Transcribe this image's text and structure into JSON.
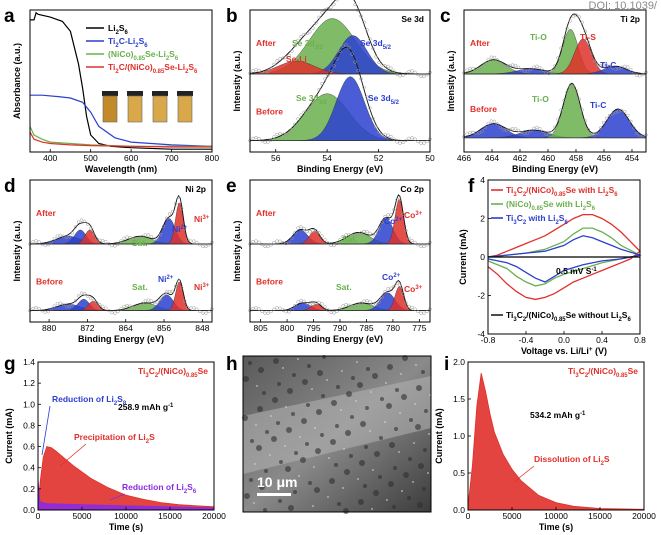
{
  "doi": "DOI: 10.1039/",
  "colors": {
    "red": "#e0302a",
    "green": "#6ab04c",
    "blue": "#2b3fd0",
    "purple": "#8a2be2",
    "black": "#000000",
    "gray": "#9a9a9a"
  },
  "panel_labels": [
    "a",
    "b",
    "c",
    "d",
    "e",
    "f",
    "g",
    "h",
    "i"
  ],
  "chart_data": [
    {
      "panel": "a",
      "type": "line",
      "xlabel": "Wavelength (nm)",
      "ylabel": "Absorbance (a.u.)",
      "xlim": [
        350,
        800
      ],
      "xticks": [
        "400",
        "500",
        "600",
        "700",
        "800"
      ],
      "legend": [
        "Li2S6",
        "Ti2C-Li2S6",
        "(NiCo)0.85Se-Li2S6",
        "Ti2C/(NiCo)0.85Se-Li2S6"
      ],
      "series": [
        {
          "name": "Li2S6",
          "color": "black",
          "x": [
            350,
            360,
            365,
            370,
            400,
            430,
            450,
            470,
            480,
            490,
            500,
            520,
            550,
            600,
            700,
            800
          ],
          "y": [
            0.93,
            0.93,
            0.98,
            0.97,
            0.95,
            0.92,
            0.85,
            0.62,
            0.45,
            0.25,
            0.12,
            0.06,
            0.04,
            0.03,
            0.02,
            0.02
          ]
        },
        {
          "name": "Ti2C-Li2S6",
          "color": "blue",
          "x": [
            350,
            380,
            420,
            450,
            480,
            500,
            520,
            560,
            600,
            700,
            800
          ],
          "y": [
            0.4,
            0.4,
            0.39,
            0.38,
            0.35,
            0.28,
            0.18,
            0.1,
            0.07,
            0.05,
            0.04
          ]
        },
        {
          "name": "(NiCo)0.85Se-Li2S6",
          "color": "green",
          "x": [
            350,
            360,
            380,
            400,
            450,
            500,
            600,
            700,
            800
          ],
          "y": [
            0.18,
            0.12,
            0.09,
            0.07,
            0.06,
            0.05,
            0.04,
            0.04,
            0.04
          ]
        },
        {
          "name": "Ti2C/(NiCo)0.85Se-Li2S6",
          "color": "red",
          "x": [
            350,
            360,
            380,
            400,
            450,
            500,
            600,
            700,
            800
          ],
          "y": [
            0.14,
            0.09,
            0.07,
            0.06,
            0.05,
            0.045,
            0.04,
            0.035,
            0.035
          ]
        }
      ]
    },
    {
      "panel": "b",
      "type": "area",
      "title": "Se 3d",
      "xlabel": "Binding Energy (eV)",
      "ylabel": "Intensity (a.u.)",
      "xlim": [
        57,
        50
      ],
      "xticks": [
        "56",
        "54",
        "52",
        "50"
      ],
      "labels": {
        "after": "After",
        "before": "Before",
        "peak1": "Se 3d3/2",
        "peak2": "Se 3d5/2",
        "peak3": "Se-Li"
      },
      "after": {
        "peaks": [
          {
            "center": 53.8,
            "height": 0.65,
            "width": 0.9,
            "color": "green"
          },
          {
            "center": 53.0,
            "height": 0.45,
            "width": 0.55,
            "color": "blue"
          },
          {
            "center": 55.2,
            "height": 0.15,
            "width": 0.7,
            "color": "red"
          }
        ]
      },
      "before": {
        "peaks": [
          {
            "center": 54.0,
            "height": 0.55,
            "width": 0.85,
            "color": "green"
          },
          {
            "center": 53.1,
            "height": 0.75,
            "width": 0.55,
            "color": "blue"
          }
        ]
      }
    },
    {
      "panel": "c",
      "type": "area",
      "title": "Ti 2p",
      "xlabel": "Binding Energy (eV)",
      "ylabel": "Intensity (a.u.)",
      "xlim": [
        466,
        453
      ],
      "xticks": [
        "466",
        "464",
        "462",
        "460",
        "458",
        "456",
        "454"
      ],
      "labels": {
        "after": "After",
        "before": "Before",
        "tio": "Ti-O",
        "tis": "Ti-S",
        "tic": "Ti-C"
      },
      "after": {
        "peaks": [
          {
            "center": 463.9,
            "height": 0.22,
            "width": 0.9,
            "color": "green"
          },
          {
            "center": 461.2,
            "height": 0.08,
            "width": 1.0,
            "color": "blue"
          },
          {
            "center": 458.4,
            "height": 0.7,
            "width": 0.55,
            "color": "green"
          },
          {
            "center": 457.5,
            "height": 0.55,
            "width": 0.6,
            "color": "red"
          },
          {
            "center": 455.2,
            "height": 0.12,
            "width": 0.8,
            "color": "blue"
          }
        ]
      },
      "before": {
        "peaks": [
          {
            "center": 463.9,
            "height": 0.22,
            "width": 0.9,
            "color": "blue"
          },
          {
            "center": 461.0,
            "height": 0.12,
            "width": 1.0,
            "color": "blue"
          },
          {
            "center": 458.3,
            "height": 0.85,
            "width": 0.6,
            "color": "green"
          },
          {
            "center": 455.0,
            "height": 0.45,
            "width": 0.8,
            "color": "blue"
          }
        ]
      }
    },
    {
      "panel": "d",
      "type": "area",
      "title": "Ni 2p",
      "xlabel": "Binding Energy (eV)",
      "ylabel": "Intensity (a.u.)",
      "xlim": [
        884,
        846
      ],
      "xticks": [
        "880",
        "872",
        "864",
        "856",
        "848"
      ],
      "labels": {
        "after": "After",
        "before": "Before",
        "sat": "Sat.",
        "ni2": "Ni2+",
        "ni3": "Ni3+"
      },
      "after": {
        "peaks": [
          {
            "center": 876.0,
            "height": 0.12,
            "width": 2.5,
            "color": "blue"
          },
          {
            "center": 873.5,
            "height": 0.22,
            "width": 1.2,
            "color": "blue"
          },
          {
            "center": 871.5,
            "height": 0.22,
            "width": 1.0,
            "color": "red"
          },
          {
            "center": 861.0,
            "height": 0.12,
            "width": 2.5,
            "color": "green"
          },
          {
            "center": 855.0,
            "height": 0.4,
            "width": 1.3,
            "color": "blue"
          },
          {
            "center": 852.8,
            "height": 0.65,
            "width": 0.8,
            "color": "red"
          }
        ]
      },
      "before": {
        "peaks": [
          {
            "center": 876.0,
            "height": 0.1,
            "width": 2.5,
            "color": "blue"
          },
          {
            "center": 872.8,
            "height": 0.18,
            "width": 1.2,
            "color": "blue"
          },
          {
            "center": 870.8,
            "height": 0.15,
            "width": 1.0,
            "color": "red"
          },
          {
            "center": 860.0,
            "height": 0.12,
            "width": 2.5,
            "color": "green"
          },
          {
            "center": 855.5,
            "height": 0.25,
            "width": 1.4,
            "color": "blue"
          },
          {
            "center": 852.8,
            "height": 0.45,
            "width": 0.8,
            "color": "red"
          }
        ]
      }
    },
    {
      "panel": "e",
      "type": "area",
      "title": "Co 2p",
      "xlabel": "Binding Energy (eV)",
      "ylabel": "Intensity (a.u.)",
      "xlim": [
        807,
        773
      ],
      "xticks": [
        "805",
        "800",
        "795",
        "790",
        "785",
        "780",
        "775"
      ],
      "labels": {
        "after": "After",
        "before": "Before",
        "sat": "Sat.",
        "co2": "Co2+",
        "co3": "Co3+"
      },
      "after": {
        "peaks": [
          {
            "center": 797.5,
            "height": 0.22,
            "width": 1.4,
            "color": "blue"
          },
          {
            "center": 794.8,
            "height": 0.2,
            "width": 1.0,
            "color": "red"
          },
          {
            "center": 786.5,
            "height": 0.18,
            "width": 2.2,
            "color": "green"
          },
          {
            "center": 781.3,
            "height": 0.4,
            "width": 1.3,
            "color": "blue"
          },
          {
            "center": 778.8,
            "height": 0.7,
            "width": 0.8,
            "color": "red"
          }
        ]
      },
      "before": {
        "peaks": [
          {
            "center": 797.0,
            "height": 0.12,
            "width": 1.5,
            "color": "blue"
          },
          {
            "center": 794.5,
            "height": 0.1,
            "width": 1.0,
            "color": "red"
          },
          {
            "center": 786.0,
            "height": 0.12,
            "width": 2.2,
            "color": "green"
          },
          {
            "center": 781.0,
            "height": 0.28,
            "width": 1.4,
            "color": "blue"
          },
          {
            "center": 778.8,
            "height": 0.38,
            "width": 0.8,
            "color": "red"
          }
        ]
      }
    },
    {
      "panel": "f",
      "type": "line",
      "xlabel": "Voltage vs. Li/Li+ (V)",
      "ylabel": "Current (mA)",
      "xlim": [
        -0.8,
        0.8
      ],
      "ylim": [
        -4,
        4
      ],
      "xticks": [
        "-0.8",
        "-0.4",
        "0.0",
        "0.4",
        "0.8"
      ],
      "yticks": [
        "4",
        "2",
        "0",
        "-2",
        "-4"
      ],
      "scan_rate": "0.5 mV S-1",
      "series": [
        {
          "name": "Ti3C2/(NiCo)0.85Se with Li2S6",
          "color": "red",
          "x": [
            -0.8,
            -0.7,
            -0.6,
            -0.5,
            -0.4,
            -0.3,
            -0.2,
            -0.1,
            0.0,
            0.1,
            0.2,
            0.3,
            0.4,
            0.5,
            0.6,
            0.7,
            0.8,
            0.7,
            0.6,
            0.5,
            0.4,
            0.3,
            0.2,
            0.1,
            0.0,
            -0.1,
            -0.2,
            -0.3,
            -0.4,
            -0.5,
            -0.6,
            -0.7,
            -0.8
          ],
          "y": [
            0.0,
            0.1,
            0.3,
            0.5,
            0.7,
            0.9,
            1.1,
            1.4,
            1.7,
            2.0,
            2.2,
            2.2,
            2.0,
            1.7,
            1.3,
            0.8,
            0.3,
            -0.1,
            -0.3,
            -0.5,
            -0.7,
            -0.9,
            -1.1,
            -1.3,
            -1.6,
            -1.9,
            -2.1,
            -2.2,
            -2.1,
            -1.8,
            -1.4,
            -0.9,
            -0.5
          ]
        },
        {
          "name": "(NiCo)0.85Se with Li2S6",
          "color": "green",
          "x": [
            -0.8,
            -0.6,
            -0.4,
            -0.2,
            0.0,
            0.1,
            0.2,
            0.3,
            0.4,
            0.5,
            0.6,
            0.8,
            0.6,
            0.4,
            0.2,
            0.0,
            -0.1,
            -0.2,
            -0.3,
            -0.4,
            -0.5,
            -0.6,
            -0.8
          ],
          "y": [
            0.0,
            0.1,
            0.2,
            0.4,
            0.8,
            1.2,
            1.5,
            1.5,
            1.3,
            1.0,
            0.6,
            0.1,
            -0.1,
            -0.3,
            -0.6,
            -0.9,
            -1.1,
            -1.4,
            -1.5,
            -1.3,
            -1.0,
            -0.6,
            -0.2
          ]
        },
        {
          "name": "Ti3C2 with Li2S6",
          "color": "blue",
          "x": [
            -0.8,
            -0.6,
            -0.4,
            -0.2,
            0.0,
            0.1,
            0.2,
            0.3,
            0.4,
            0.5,
            0.6,
            0.8,
            0.6,
            0.4,
            0.2,
            0.0,
            -0.1,
            -0.2,
            -0.3,
            -0.4,
            -0.5,
            -0.6,
            -0.8
          ],
          "y": [
            0.0,
            0.1,
            0.2,
            0.3,
            0.6,
            0.9,
            1.1,
            1.0,
            0.8,
            0.6,
            0.4,
            0.1,
            -0.1,
            -0.2,
            -0.4,
            -0.7,
            -1.0,
            -1.3,
            -1.1,
            -0.8,
            -0.5,
            -0.3,
            -0.1
          ]
        },
        {
          "name": "Ti3C2/(NiCo)0.85Se without Li2S6",
          "color": "black",
          "x": [
            -0.8,
            0.8
          ],
          "y": [
            0.0,
            0.0
          ]
        }
      ]
    },
    {
      "panel": "g",
      "type": "area",
      "title": "Ti3C2/(NiCo)0.85Se",
      "xlabel": "Time (s)",
      "ylabel": "Current (mA)",
      "xlim": [
        0,
        20000
      ],
      "ylim": [
        0,
        1.4
      ],
      "xticks": [
        "0",
        "5000",
        "10000",
        "15000",
        "20000"
      ],
      "yticks": [
        "0.0",
        "0.2",
        "0.4",
        "0.6",
        "0.8",
        "1.0",
        "1.2",
        "1.4"
      ],
      "capacity": "258.9 mAh g-1",
      "annotations": [
        "Reduction of Li2S8",
        "Precipitation of Li2S",
        "Reduction of Li2S6"
      ],
      "series": [
        {
          "name": "Precipitation of Li2S",
          "color": "red",
          "x": [
            0,
            300,
            600,
            1000,
            1500,
            2000,
            3000,
            4000,
            5000,
            6000,
            8000,
            10000,
            12000,
            14000,
            16000,
            18000,
            20000
          ],
          "y": [
            0.05,
            0.3,
            0.5,
            0.6,
            0.59,
            0.56,
            0.49,
            0.42,
            0.36,
            0.3,
            0.21,
            0.14,
            0.1,
            0.07,
            0.05,
            0.04,
            0.03
          ]
        },
        {
          "name": "Reduction of Li2S6",
          "color": "purple",
          "x": [
            0,
            200,
            1000,
            5000,
            10000,
            15000,
            20000
          ],
          "y": [
            0.3,
            0.08,
            0.06,
            0.05,
            0.04,
            0.03,
            0.02
          ]
        }
      ]
    },
    {
      "panel": "h",
      "type": "image",
      "scale_bar": "10 μm"
    },
    {
      "panel": "i",
      "type": "area",
      "title": "Ti3C2/(NiCo)0.85Se",
      "xlabel": "Time (s)",
      "ylabel": "Current (mA)",
      "xlim": [
        0,
        20000
      ],
      "ylim": [
        0,
        2.0
      ],
      "xticks": [
        "0",
        "5000",
        "10000",
        "15000",
        "20000"
      ],
      "yticks": [
        "0.0",
        "0.5",
        "1.0",
        "1.5",
        "2.0"
      ],
      "capacity": "534.2 mAh g-1",
      "annotations": [
        "Dissolution of Li2S"
      ],
      "series": [
        {
          "name": "Dissolution of Li2S",
          "color": "red",
          "x": [
            0,
            500,
            1000,
            1500,
            2000,
            2500,
            3000,
            4000,
            5000,
            6000,
            8000,
            10000,
            12000,
            15000,
            20000
          ],
          "y": [
            0.05,
            0.6,
            1.4,
            1.85,
            1.6,
            1.3,
            1.05,
            0.75,
            0.55,
            0.4,
            0.2,
            0.1,
            0.05,
            0.02,
            0.01
          ]
        }
      ]
    }
  ]
}
